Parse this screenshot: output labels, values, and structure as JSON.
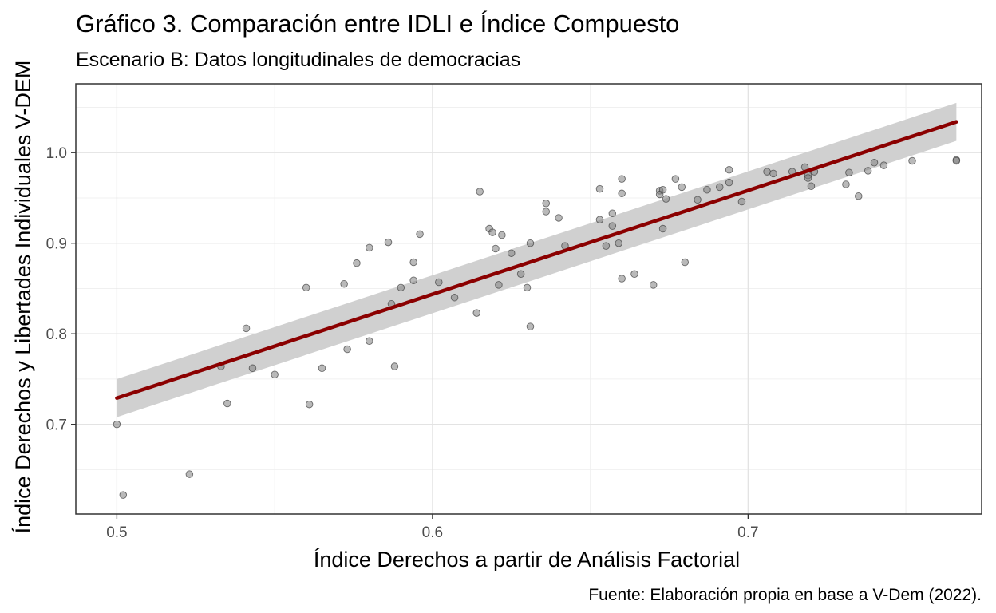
{
  "chart_data": {
    "type": "scatter",
    "title": "Gráfico 3. Comparación entre IDLI e Índice Compuesto",
    "subtitle": "Escenario B: Datos longitudinales de democracias",
    "xlabel": "Índice Derechos a partir de Análisis Factorial",
    "ylabel": "Índice Derechos y Libertades Individuales V-DEM",
    "caption": "Fuente: Elaboración propia en base a V-Dem (2022).",
    "xlim": [
      0.487,
      0.774
    ],
    "ylim": [
      0.601,
      1.076
    ],
    "x_ticks": [
      0.5,
      0.6,
      0.7
    ],
    "x_tick_labels": [
      "0.5",
      "0.6",
      "0.7"
    ],
    "y_ticks": [
      0.7,
      0.8,
      0.9,
      1.0
    ],
    "y_tick_labels": [
      "0.7",
      "0.8",
      "0.9",
      "1.0"
    ],
    "grid": true,
    "point_color": "#7f7f7f",
    "fit_line_color": "#8b0000",
    "band_color": "#d0d0d0",
    "fit_line": {
      "x": [
        0.5,
        0.766
      ],
      "y": [
        0.729,
        1.034
      ]
    },
    "confidence_band": {
      "x": [
        0.5,
        0.766
      ],
      "lower": [
        0.708,
        1.013
      ],
      "upper": [
        0.75,
        1.055
      ]
    },
    "points": [
      {
        "x": 0.5,
        "y": 0.7
      },
      {
        "x": 0.502,
        "y": 0.622
      },
      {
        "x": 0.523,
        "y": 0.645
      },
      {
        "x": 0.533,
        "y": 0.764
      },
      {
        "x": 0.535,
        "y": 0.723
      },
      {
        "x": 0.541,
        "y": 0.806
      },
      {
        "x": 0.543,
        "y": 0.762
      },
      {
        "x": 0.55,
        "y": 0.755
      },
      {
        "x": 0.56,
        "y": 0.851
      },
      {
        "x": 0.561,
        "y": 0.722
      },
      {
        "x": 0.565,
        "y": 0.762
      },
      {
        "x": 0.572,
        "y": 0.855
      },
      {
        "x": 0.573,
        "y": 0.783
      },
      {
        "x": 0.576,
        "y": 0.878
      },
      {
        "x": 0.58,
        "y": 0.895
      },
      {
        "x": 0.58,
        "y": 0.792
      },
      {
        "x": 0.586,
        "y": 0.901
      },
      {
        "x": 0.587,
        "y": 0.833
      },
      {
        "x": 0.588,
        "y": 0.764
      },
      {
        "x": 0.59,
        "y": 0.851
      },
      {
        "x": 0.594,
        "y": 0.879
      },
      {
        "x": 0.594,
        "y": 0.859
      },
      {
        "x": 0.596,
        "y": 0.91
      },
      {
        "x": 0.602,
        "y": 0.857
      },
      {
        "x": 0.607,
        "y": 0.84
      },
      {
        "x": 0.614,
        "y": 0.823
      },
      {
        "x": 0.615,
        "y": 0.957
      },
      {
        "x": 0.618,
        "y": 0.916
      },
      {
        "x": 0.619,
        "y": 0.912
      },
      {
        "x": 0.62,
        "y": 0.894
      },
      {
        "x": 0.621,
        "y": 0.854
      },
      {
        "x": 0.622,
        "y": 0.909
      },
      {
        "x": 0.625,
        "y": 0.889
      },
      {
        "x": 0.628,
        "y": 0.866
      },
      {
        "x": 0.63,
        "y": 0.851
      },
      {
        "x": 0.631,
        "y": 0.9
      },
      {
        "x": 0.631,
        "y": 0.808
      },
      {
        "x": 0.636,
        "y": 0.944
      },
      {
        "x": 0.636,
        "y": 0.935
      },
      {
        "x": 0.64,
        "y": 0.928
      },
      {
        "x": 0.642,
        "y": 0.897
      },
      {
        "x": 0.653,
        "y": 0.926
      },
      {
        "x": 0.653,
        "y": 0.96
      },
      {
        "x": 0.655,
        "y": 0.897
      },
      {
        "x": 0.657,
        "y": 0.933
      },
      {
        "x": 0.657,
        "y": 0.919
      },
      {
        "x": 0.659,
        "y": 0.9
      },
      {
        "x": 0.66,
        "y": 0.861
      },
      {
        "x": 0.66,
        "y": 0.971
      },
      {
        "x": 0.66,
        "y": 0.955
      },
      {
        "x": 0.664,
        "y": 0.866
      },
      {
        "x": 0.67,
        "y": 0.854
      },
      {
        "x": 0.672,
        "y": 0.958
      },
      {
        "x": 0.672,
        "y": 0.954
      },
      {
        "x": 0.673,
        "y": 0.959
      },
      {
        "x": 0.673,
        "y": 0.916
      },
      {
        "x": 0.674,
        "y": 0.949
      },
      {
        "x": 0.677,
        "y": 0.971
      },
      {
        "x": 0.679,
        "y": 0.962
      },
      {
        "x": 0.68,
        "y": 0.879
      },
      {
        "x": 0.684,
        "y": 0.948
      },
      {
        "x": 0.687,
        "y": 0.959
      },
      {
        "x": 0.691,
        "y": 0.962
      },
      {
        "x": 0.694,
        "y": 0.981
      },
      {
        "x": 0.694,
        "y": 0.967
      },
      {
        "x": 0.698,
        "y": 0.946
      },
      {
        "x": 0.706,
        "y": 0.979
      },
      {
        "x": 0.708,
        "y": 0.977
      },
      {
        "x": 0.714,
        "y": 0.979
      },
      {
        "x": 0.718,
        "y": 0.984
      },
      {
        "x": 0.719,
        "y": 0.975
      },
      {
        "x": 0.719,
        "y": 0.972
      },
      {
        "x": 0.72,
        "y": 0.963
      },
      {
        "x": 0.721,
        "y": 0.979
      },
      {
        "x": 0.731,
        "y": 0.965
      },
      {
        "x": 0.732,
        "y": 0.978
      },
      {
        "x": 0.735,
        "y": 0.952
      },
      {
        "x": 0.738,
        "y": 0.98
      },
      {
        "x": 0.74,
        "y": 0.989
      },
      {
        "x": 0.743,
        "y": 0.986
      },
      {
        "x": 0.752,
        "y": 0.991
      },
      {
        "x": 0.766,
        "y": 0.992
      },
      {
        "x": 0.766,
        "y": 0.991
      }
    ]
  }
}
